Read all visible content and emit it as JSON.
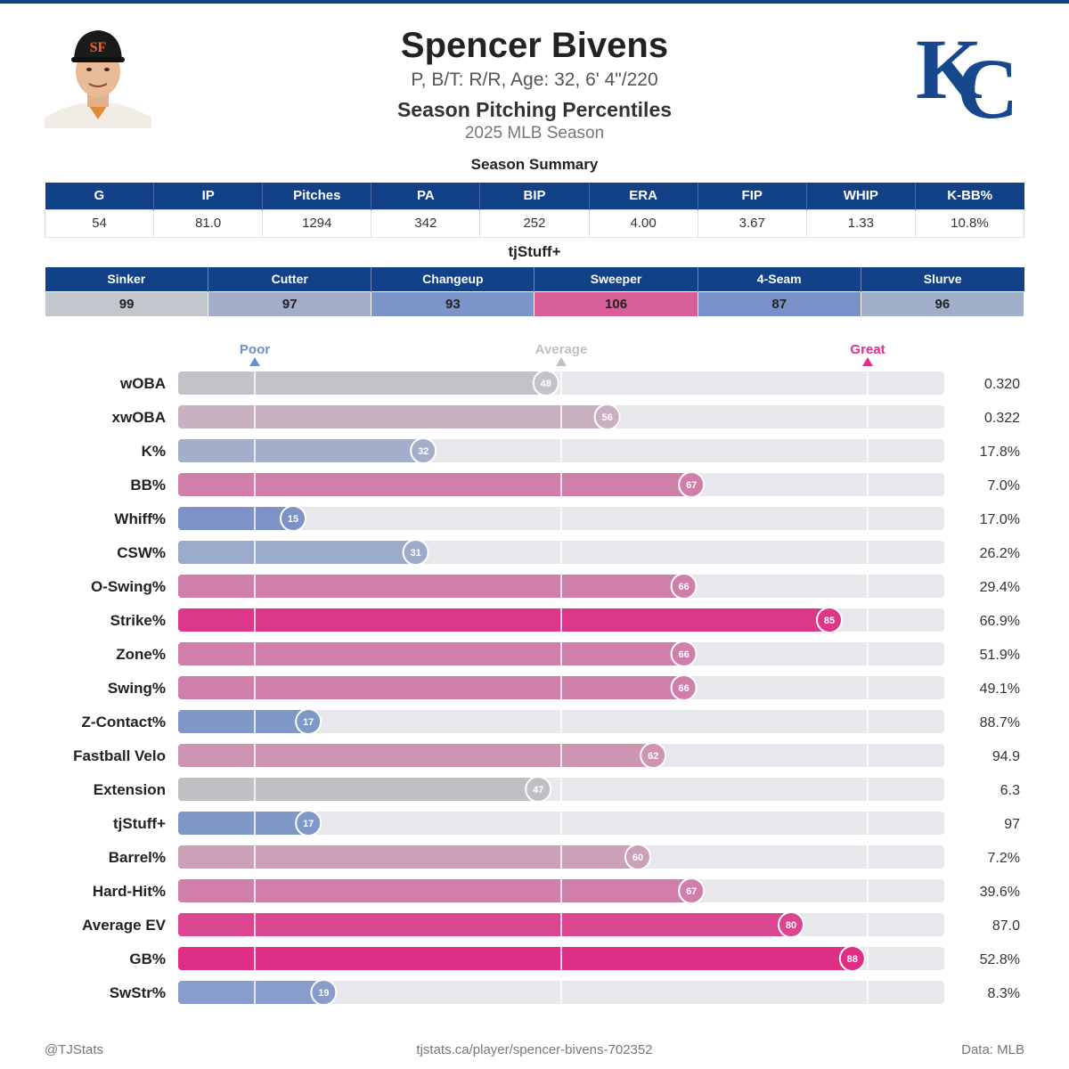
{
  "header": {
    "name": "Spencer Bivens",
    "bio": "P, B/T: R/R, Age: 32, 6' 4\"/220",
    "title": "Season Pitching Percentiles",
    "subtitle": "2025 MLB Season"
  },
  "season_summary": {
    "title": "Season Summary",
    "columns": [
      "G",
      "IP",
      "Pitches",
      "PA",
      "BIP",
      "ERA",
      "FIP",
      "WHIP",
      "K-BB%"
    ],
    "values": [
      "54",
      "81.0",
      "1294",
      "342",
      "252",
      "4.00",
      "3.67",
      "1.33",
      "10.8%"
    ]
  },
  "tjstuff": {
    "title": "tjStuff+",
    "columns": [
      "Sinker",
      "Cutter",
      "Changeup",
      "Sweeper",
      "4-Seam",
      "Slurve"
    ],
    "values": [
      "99",
      "97",
      "93",
      "106",
      "87",
      "96"
    ],
    "cell_colors": [
      "#c3c6cd",
      "#a3acc9",
      "#7b95c8",
      "#d85f98",
      "#7891c8",
      "#a2afcb"
    ]
  },
  "colors": {
    "header_blue": "#124187",
    "poor": "#6f8fc8",
    "average": "#c0c0c4",
    "great": "#e0308a",
    "track": "#e8e8ec"
  },
  "chart_data": {
    "type": "bar",
    "orientation": "horizontal",
    "xlim": [
      0,
      100
    ],
    "reference_markers": [
      {
        "label": "Poor",
        "value": 10
      },
      {
        "label": "Average",
        "value": 50
      },
      {
        "label": "Great",
        "value": 90
      }
    ],
    "categories": [
      "wOBA",
      "xwOBA",
      "K%",
      "BB%",
      "Whiff%",
      "CSW%",
      "O-Swing%",
      "Strike%",
      "Zone%",
      "Swing%",
      "Z-Contact%",
      "Fastball Velo",
      "Extension",
      "tjStuff+",
      "Barrel%",
      "Hard-Hit%",
      "Average EV",
      "GB%",
      "SwStr%"
    ],
    "percentiles": [
      48,
      56,
      32,
      67,
      15,
      31,
      66,
      85,
      66,
      66,
      17,
      62,
      47,
      17,
      60,
      67,
      80,
      88,
      19
    ],
    "stat_values": [
      "0.320",
      "0.322",
      "17.8%",
      "7.0%",
      "17.0%",
      "26.2%",
      "29.4%",
      "66.9%",
      "51.9%",
      "49.1%",
      "88.7%",
      "94.9",
      "6.3",
      "97",
      "7.2%",
      "39.6%",
      "87.0",
      "52.8%",
      "8.3%"
    ],
    "bar_colors": [
      "#c2c3c8",
      "#c9b0bf",
      "#a3afca",
      "#d07fab",
      "#7d93c7",
      "#9dabca",
      "#d07fab",
      "#dd378a",
      "#d07fab",
      "#d07fab",
      "#7f98c8",
      "#cd95b1",
      "#c0c0c4",
      "#7f98c8",
      "#cba1b8",
      "#d07fab",
      "#da4690",
      "#de2e86",
      "#889dcb"
    ]
  },
  "footer": {
    "handle": "@TJStats",
    "url": "tjstats.ca/player/spencer-bivens-702352",
    "source": "Data: MLB"
  }
}
